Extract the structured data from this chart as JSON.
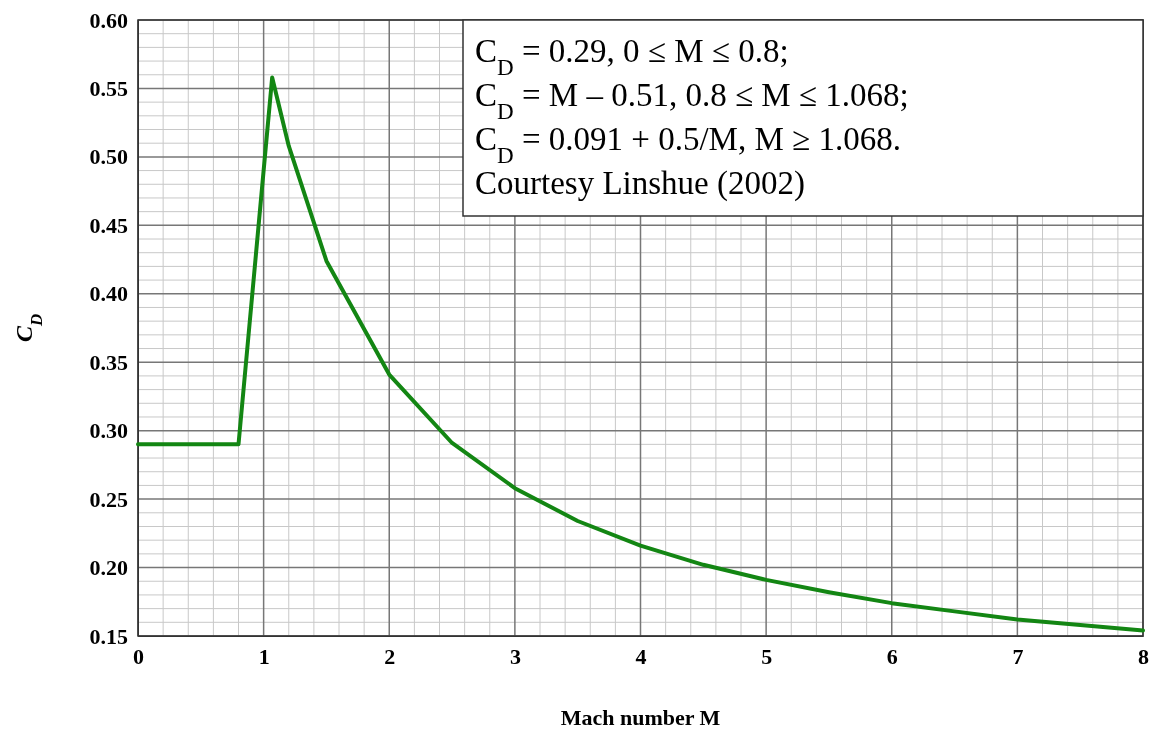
{
  "chart_data": {
    "type": "line",
    "xlabel": "Mach number M",
    "ylabel": "C$_{D}$",
    "x": [
      0,
      0.8,
      1.068,
      1.2,
      1.5,
      2,
      2.5,
      3,
      3.5,
      4,
      4.5,
      5,
      5.5,
      6,
      6.5,
      7,
      7.5,
      8
    ],
    "series": [
      {
        "color": "#138613",
        "values": [
          0.29,
          0.29,
          0.558,
          0.508,
          0.424,
          0.341,
          0.291,
          0.258,
          0.234,
          0.216,
          0.202,
          0.191,
          0.182,
          0.174,
          0.168,
          0.162,
          0.158,
          0.154
        ]
      }
    ],
    "xlim": [
      0,
      8
    ],
    "xticks": [
      0,
      1,
      2,
      3,
      4,
      5,
      6,
      7,
      8
    ],
    "ylim": [
      0.15,
      0.6
    ],
    "yticks": [
      {
        "value": 0.15,
        "label": "0.15"
      },
      {
        "value": 0.2,
        "label": "0.20"
      },
      {
        "value": 0.25,
        "label": "0.25"
      },
      {
        "value": 0.3,
        "label": "0.30"
      },
      {
        "value": 0.35,
        "label": "0.35"
      },
      {
        "value": 0.4,
        "label": "0.40"
      },
      {
        "value": 0.45,
        "label": "0.45"
      },
      {
        "value": 0.5,
        "label": "0.50"
      },
      {
        "value": 0.55,
        "label": "0.55"
      },
      {
        "value": 0.6,
        "label": "0.60"
      }
    ],
    "grid": true,
    "marker": "none",
    "line_style": "solid",
    "annotations": [
      "C$_{D}$ = 0.29, 0 ≤ M ≤ 0.8;",
      "C$_{D}$ = M – 0.51, 0.8 ≤ M ≤ 1.068;",
      "C$_{D}$ = 0.091 + 0.5/M, M ≥ 1.068.",
      "Courtesy Linshue (2002)"
    ]
  }
}
